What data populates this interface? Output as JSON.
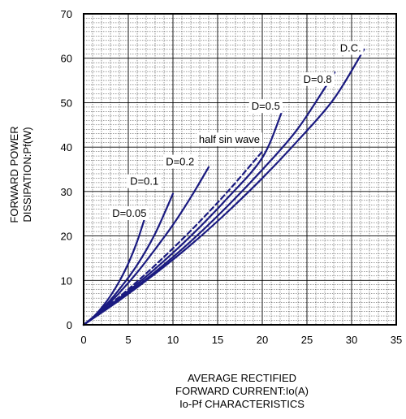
{
  "chart_data": {
    "type": "line",
    "title": "",
    "caption": "Io-Pf CHARACTERISTICS",
    "xlabel": [
      "AVERAGE RECTIFIED",
      "FORWARD CURRENT:Io(A)"
    ],
    "ylabel": [
      "FORWARD POWER",
      "DISSIPATION:Pf(W)"
    ],
    "xlim": [
      0,
      35
    ],
    "ylim": [
      0,
      70
    ],
    "x_ticks": [
      0,
      5,
      10,
      15,
      20,
      25,
      30,
      35
    ],
    "y_ticks": [
      0,
      10,
      20,
      30,
      40,
      50,
      60,
      70
    ],
    "grid": true,
    "colors": {
      "series": "#1a1a80",
      "grid": "#000000"
    },
    "series": [
      {
        "name": "D=0.05",
        "style": "solid",
        "points": [
          [
            0,
            0
          ],
          [
            1,
            1.6
          ],
          [
            2,
            3.8
          ],
          [
            3,
            6.5
          ],
          [
            4,
            9.8
          ],
          [
            5,
            13.8
          ],
          [
            6,
            18.8
          ],
          [
            7,
            25
          ]
        ]
      },
      {
        "name": "D=0.1",
        "style": "solid",
        "points": [
          [
            0,
            0
          ],
          [
            2,
            3.4
          ],
          [
            4,
            8
          ],
          [
            6,
            13.5
          ],
          [
            8,
            20.5
          ],
          [
            10,
            29.5
          ]
        ]
      },
      {
        "name": "D=0.2",
        "style": "solid",
        "points": [
          [
            0,
            0
          ],
          [
            2,
            3.2
          ],
          [
            4,
            7.2
          ],
          [
            6,
            11.8
          ],
          [
            8,
            17
          ],
          [
            10,
            22.5
          ],
          [
            12,
            28.7
          ],
          [
            14,
            35.5
          ]
        ]
      },
      {
        "name": "half sin wave",
        "style": "dashed",
        "points": [
          [
            0,
            0
          ],
          [
            4,
            6.3
          ],
          [
            8,
            13.4
          ],
          [
            12,
            21.2
          ],
          [
            16,
            29.7
          ],
          [
            20,
            39
          ]
        ]
      },
      {
        "name": "D=0.5",
        "style": "solid",
        "points": [
          [
            0,
            0
          ],
          [
            4,
            6
          ],
          [
            8,
            12.6
          ],
          [
            12,
            20
          ],
          [
            16,
            28.3
          ],
          [
            20,
            37.6
          ],
          [
            22.2,
            48
          ]
        ]
      },
      {
        "name": "D=0.8",
        "style": "solid",
        "points": [
          [
            0,
            0
          ],
          [
            4,
            5.7
          ],
          [
            8,
            11.9
          ],
          [
            12,
            18.8
          ],
          [
            16,
            26.5
          ],
          [
            20,
            34.9
          ],
          [
            24,
            44.2
          ],
          [
            28.1,
            56.8
          ]
        ]
      },
      {
        "name": "D.C.",
        "style": "solid",
        "points": [
          [
            0,
            0
          ],
          [
            4,
            5.5
          ],
          [
            8,
            11.5
          ],
          [
            12,
            18
          ],
          [
            16,
            25.2
          ],
          [
            20,
            33
          ],
          [
            24,
            41.5
          ],
          [
            28,
            50.8
          ],
          [
            31.4,
            62
          ]
        ]
      }
    ],
    "annotations": [
      {
        "text": "D=0.05",
        "x": 3.2,
        "y": 24.3
      },
      {
        "text": "D=0.1",
        "x": 5.2,
        "y": 31.5
      },
      {
        "text": "D=0.2",
        "x": 9.2,
        "y": 35.9
      },
      {
        "text": "half sin wave",
        "x": 12.9,
        "y": 40.9
      },
      {
        "text": "D=0.5",
        "x": 18.8,
        "y": 48.4
      },
      {
        "text": "D=0.8",
        "x": 24.6,
        "y": 54.5
      },
      {
        "text": "D.C.",
        "x": 28.7,
        "y": 61.5
      }
    ]
  }
}
